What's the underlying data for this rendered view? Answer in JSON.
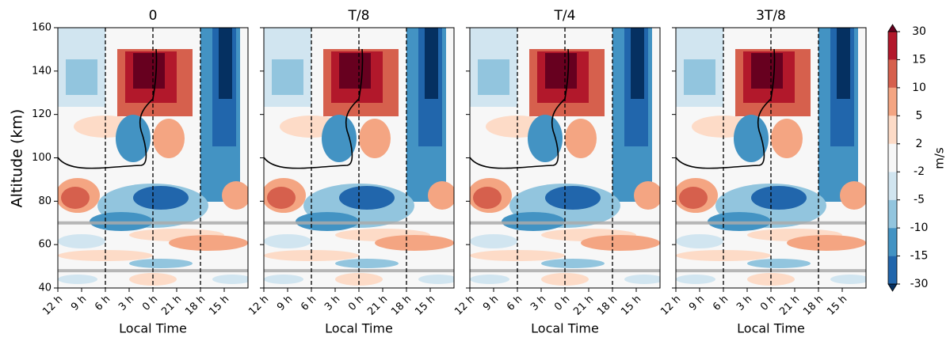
{
  "chart_data": {
    "type": "contour",
    "panels": [
      {
        "title": "0"
      },
      {
        "title": "T/8"
      },
      {
        "title": "T/4"
      },
      {
        "title": "3T/8"
      }
    ],
    "xlabel": "Local Time",
    "ylabel": "Altitude (km)",
    "xlim": [
      0,
      8
    ],
    "xticks": [
      {
        "value": 0,
        "label": "12 h"
      },
      {
        "value": 1,
        "label": "9 h"
      },
      {
        "value": 2,
        "label": "6 h"
      },
      {
        "value": 3,
        "label": "3 h"
      },
      {
        "value": 4,
        "label": "0 h"
      },
      {
        "value": 5,
        "label": "21 h"
      },
      {
        "value": 6,
        "label": "18 h"
      },
      {
        "value": 7,
        "label": "15 h"
      }
    ],
    "ylim": [
      40,
      160
    ],
    "yticks": [
      40,
      60,
      80,
      100,
      120,
      140,
      160
    ],
    "vlines": [
      2,
      4,
      6
    ],
    "hlines": [
      70,
      48
    ],
    "colorbar": {
      "label": "m/s",
      "levels": [
        -30,
        -15,
        -10,
        -5,
        -2,
        2,
        5,
        10,
        15,
        30
      ],
      "colors": [
        "#053061",
        "#2166ac",
        "#4393c3",
        "#92c5de",
        "#d1e5f0",
        "#f7f7f7",
        "#fddbc7",
        "#f4a582",
        "#d6604d",
        "#b2182b",
        "#67001f"
      ]
    }
  }
}
